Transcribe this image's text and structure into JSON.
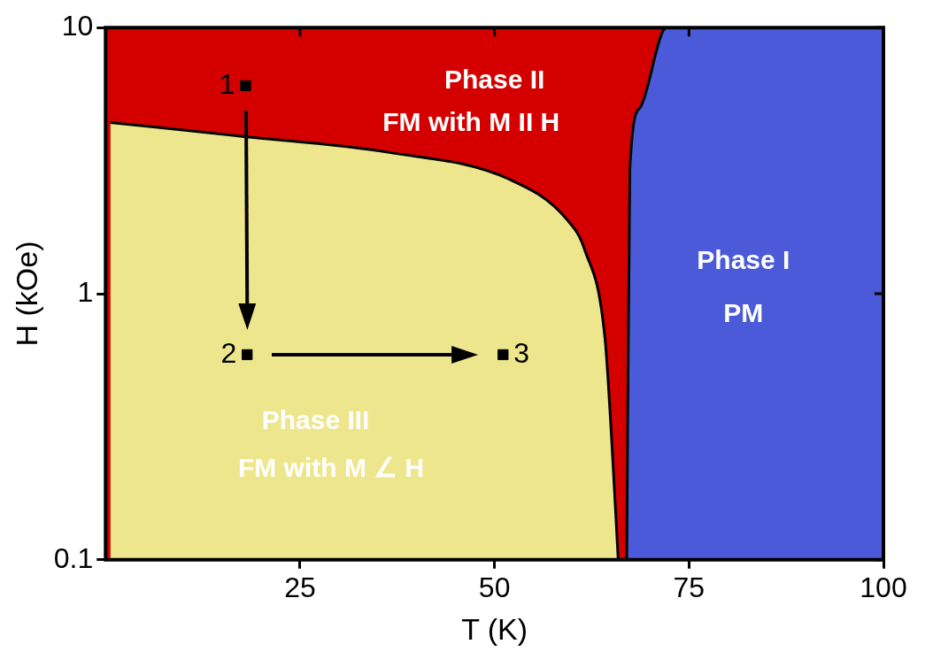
{
  "chart_data": {
    "type": "area",
    "xlabel": "T (K)",
    "ylabel": "H (kOe)",
    "xlim": [
      0,
      100
    ],
    "xticks": [
      25,
      50,
      75,
      100
    ],
    "ylim": [
      0.1,
      10
    ],
    "yticks": [
      0.1,
      1,
      10
    ],
    "log": "y",
    "legend": false,
    "series": [
      {
        "type": "area",
        "color": "#eee68c",
        "x": [
          0.6,
          17.6,
          36.3,
          51.8,
          59.3,
          61.6,
          64.2,
          65.1,
          65.9
        ],
        "values": [
          4.4,
          3.9,
          3.4,
          2.7,
          1.9,
          1.46,
          0.68,
          0.27,
          0.1
        ]
      },
      {
        "type": "area",
        "color": "#4a5ad8",
        "x": [
          67.0,
          67.4,
          68.7,
          72.1,
          100
        ],
        "values": [
          0.1,
          2.95,
          5.0,
          10,
          10
        ]
      },
      {
        "type": "area",
        "color": "#d40000",
        "x": [
          0,
          72.1
        ],
        "values": [
          10,
          10
        ]
      },
      {
        "type": "scatter",
        "color": "#000000",
        "marker": "square",
        "x": [
          18.0,
          18.2,
          51.1
        ],
        "values": [
          6.05,
          0.59,
          0.59
        ]
      }
    ],
    "annotations": [
      {
        "text": "1",
        "x": 18.0,
        "y": 6.05
      },
      {
        "text": "2",
        "x": 18.2,
        "y": 0.59
      },
      {
        "text": "3",
        "x": 51.1,
        "y": 0.59
      },
      "Phase II",
      "FM with M II H",
      "Phase III",
      "FM with M ∠ H",
      "Phase I",
      "PM"
    ]
  }
}
